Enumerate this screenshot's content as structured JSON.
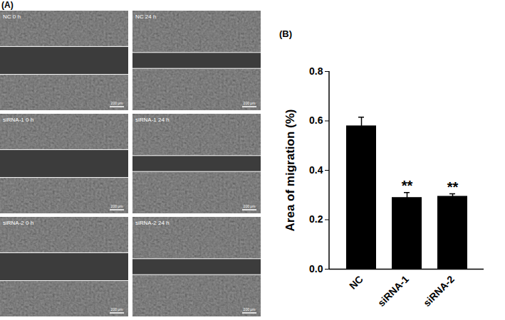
{
  "figure": {
    "panel_labels": {
      "a": "(A)",
      "b": "(B)"
    },
    "images": [
      {
        "label": "NC 0 h",
        "scale_bar": "200 μm"
      },
      {
        "label": "NC 24 h",
        "scale_bar": "200 μm"
      },
      {
        "label": "siRNA-1 0 h",
        "scale_bar": "200 μm"
      },
      {
        "label": "siRNA-1 24 h",
        "scale_bar": "200 μm"
      },
      {
        "label": "siRNA-2 0 h",
        "scale_bar": "200 μm"
      },
      {
        "label": "siRNA-2 24 h",
        "scale_bar": "200 μm"
      }
    ]
  },
  "chart_data": {
    "type": "bar",
    "categories": [
      "NC",
      "siRNA-1",
      "siRNA-2"
    ],
    "values": [
      0.58,
      0.29,
      0.295
    ],
    "errors": [
      0.035,
      0.02,
      0.01
    ],
    "annotations": [
      null,
      "**",
      "**"
    ],
    "color": "#000000",
    "y_label": "Area of migration (%)",
    "ylim": [
      0,
      0.8
    ],
    "yticks": [
      {
        "value": 0,
        "label": "0.0"
      },
      0.2,
      0.4,
      0.6,
      0.8
    ]
  }
}
